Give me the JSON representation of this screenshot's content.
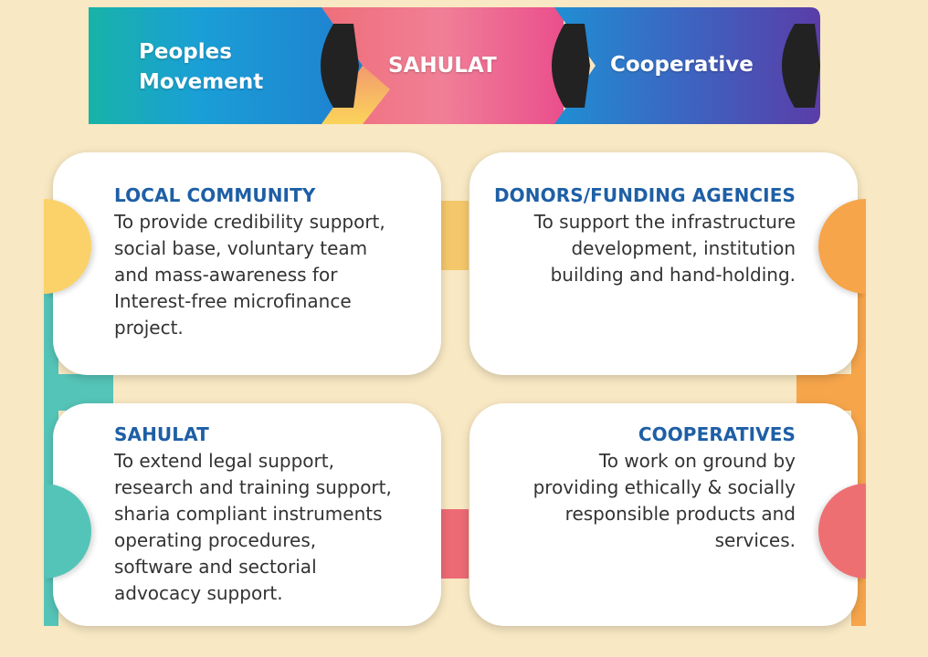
{
  "banner": {
    "segments": [
      {
        "label_lines": [
          "Peoples",
          "Movement"
        ]
      },
      {
        "label": "SAHULAT"
      },
      {
        "label": "Cooperative"
      }
    ]
  },
  "cards": [
    {
      "title": "LOCAL COMMUNITY",
      "lines": [
        "To provide credibility support,",
        "social base, voluntary team",
        "and mass-awareness for",
        "Interest-free microfinance",
        "project."
      ]
    },
    {
      "title": "DONORS/FUNDING AGENCIES",
      "lines": [
        "To support the infrastructure",
        "development, institution",
        "building and hand-holding."
      ]
    },
    {
      "title": "SAHULAT",
      "lines": [
        "To extend legal support,",
        "research and training support,",
        "sharia compliant instruments",
        "operating procedures,",
        "software and sectorial",
        "advocacy support."
      ]
    },
    {
      "title": "COOPERATIVES",
      "lines": [
        "To work on ground by",
        "providing ethically & socially",
        "responsible products and",
        "services."
      ]
    }
  ],
  "colors": {
    "background": "#f8e8c3",
    "heading": "#1e5fa6",
    "body_text": "#333333",
    "yellow": "#fbd26a",
    "orange": "#f6a54b",
    "teal": "#55c4b8",
    "coral": "#ee6f72",
    "arrow_head": "#222222"
  }
}
